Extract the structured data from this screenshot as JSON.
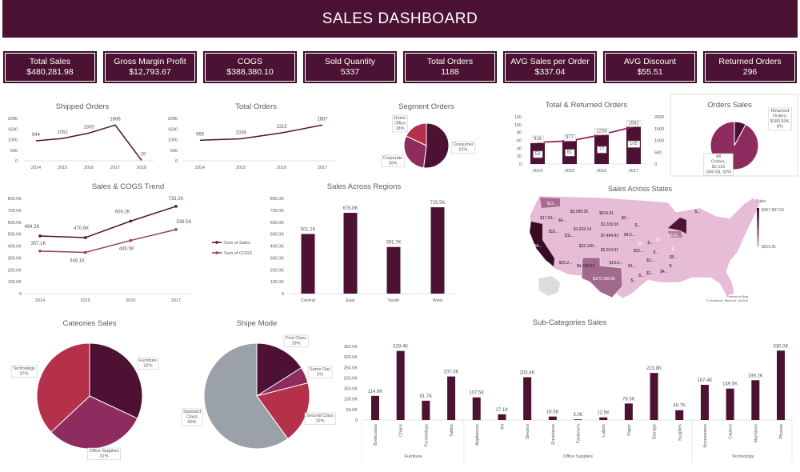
{
  "header": {
    "title": "SALES DASHBOARD"
  },
  "kpis": [
    {
      "label": "Total Sales",
      "value": "$480,281.98"
    },
    {
      "label": "Gross Margin Profit",
      "value": "$12,793.67"
    },
    {
      "label": "COGS",
      "value": "$388,380.10"
    },
    {
      "label": "Sold Quantity",
      "value": "5337"
    },
    {
      "label": "Total Orders",
      "value": "1188"
    },
    {
      "label": "AVG Sales per Order",
      "value": "$337.04"
    },
    {
      "label": "AVG Discount",
      "value": "$55.51"
    },
    {
      "label": "Returned  Orders",
      "value": "296"
    }
  ],
  "colors": {
    "brand": "#4b1233",
    "dark": "#4d1133",
    "purple": "#8e2c5f",
    "red": "#b5304a",
    "grey": "#9aa1a8"
  },
  "chart_data": {
    "shipped": {
      "type": "line",
      "title": "Shipped Orders",
      "categories": [
        "2014",
        "2015",
        "2016",
        "2017",
        "2018"
      ],
      "values": [
        944,
        1052,
        1305,
        1688,
        20
      ],
      "ylim": [
        0,
        2000
      ],
      "ystep": 500
    },
    "total_orders": {
      "type": "line",
      "title": "Total Orders",
      "categories": [
        "2014",
        "2015",
        "2016",
        "2017"
      ],
      "values": [
        969,
        1038,
        1315,
        1687
      ],
      "ylim": [
        0,
        2000
      ],
      "ystep": 500
    },
    "segment": {
      "type": "pie",
      "title": "Segment Orders",
      "slices": [
        {
          "label": "Consumer",
          "value": 52,
          "pct": "52%"
        },
        {
          "label": "Corporate",
          "value": 30,
          "pct": "30%"
        },
        {
          "label": "Home Office",
          "value": 18,
          "pct": "18%"
        }
      ]
    },
    "total_returned": {
      "type": "bar+line",
      "title": "Total & Returned Orders",
      "categories": [
        "2014",
        "2015",
        "2016",
        "2017"
      ],
      "bars": {
        "values": [
          53,
          61,
          77,
          105
        ],
        "ylim": [
          0,
          120
        ],
        "ystep": 20
      },
      "line": {
        "values": [
          916,
          977,
          1238,
          1582
        ],
        "ylim": [
          0,
          2000
        ],
        "ystep": 500
      }
    },
    "orders_sales": {
      "type": "pie",
      "title": "Orders Sales",
      "slices": [
        {
          "label": "Returned Orders",
          "value": 180504,
          "text": "Returned Orders, $180,504, 8%"
        },
        {
          "label": "All Orders",
          "value": 2116696.58,
          "text": "All Orders, $2,116,696.58, 92%"
        }
      ]
    },
    "sales_cogs": {
      "type": "line",
      "title": "Sales & COGS Trend",
      "categories": [
        "2014",
        "2015",
        "2016",
        "2017"
      ],
      "ylim": [
        0,
        800000
      ],
      "ystep": 100000,
      "legend": "right",
      "series": [
        {
          "name": "Sum of Sales",
          "values": [
            484200,
            470500,
            609200,
            733200
          ]
        },
        {
          "name": "Sum of COGS",
          "values": [
            357100,
            346100,
            446500,
            538500
          ]
        }
      ]
    },
    "regions": {
      "type": "bar",
      "title": "Sales Across Regions",
      "categories": [
        "Central",
        "East",
        "South",
        "West"
      ],
      "values": [
        501200,
        678800,
        391700,
        725500
      ],
      "ylim": [
        0,
        800000
      ],
      "ystep": 100000
    },
    "categories": {
      "type": "pie",
      "title": "Cateories Sales",
      "slices": [
        {
          "label": "Furniture",
          "value": 32,
          "pct": "32%"
        },
        {
          "label": "Office Supplies",
          "value": 31,
          "pct": "31%"
        },
        {
          "label": "Technology",
          "value": 37,
          "pct": "37%"
        }
      ]
    },
    "ship_mode": {
      "type": "pie",
      "title": "Shipe Mode",
      "slices": [
        {
          "label": "First Class",
          "value": 16,
          "pct": "16%"
        },
        {
          "label": "Same Day",
          "value": 5,
          "pct": "5%"
        },
        {
          "label": "Second Class",
          "value": 19,
          "pct": "19%"
        },
        {
          "label": "Standard Class",
          "value": 60,
          "pct": "60%"
        }
      ]
    },
    "subcategories": {
      "type": "bar",
      "title": "Sub-Categories Sales",
      "ylim": [
        0,
        350000
      ],
      "ystep": 50000,
      "groups": [
        {
          "name": "Furniture",
          "items": [
            [
              "Bookcases",
              114900
            ],
            [
              "Chairs",
              328400
            ],
            [
              "Furnishings",
              91700
            ],
            [
              "Tables",
              207000
            ]
          ]
        },
        {
          "name": "Office Supplies",
          "items": [
            [
              "Appliances",
              107500
            ],
            [
              "Art",
              27100
            ],
            [
              "Binders",
              203400
            ],
            [
              "Envelopes",
              16500
            ],
            [
              "Fasteners",
              3000
            ],
            [
              "Labels",
              12500
            ],
            [
              "Paper",
              78500
            ],
            [
              "Storage",
              223800
            ],
            [
              "Supplies",
              46700
            ]
          ]
        },
        {
          "name": "Technology",
          "items": [
            [
              "Accessories",
              167400
            ],
            [
              "Copiers",
              149500
            ],
            [
              "Machines",
              189200
            ],
            [
              "Phones",
              330000
            ]
          ]
        }
      ]
    },
    "states_map": {
      "type": "map",
      "title": "Sales Across States",
      "legend_title": "Sales",
      "max_label": "$457,687.63",
      "min_label": "$919.91",
      "labels": [
        "$13...",
        "$5,589.35",
        "$919.91",
        "$2...",
        "$...",
        "$17.63...",
        "$4...",
        "$1,315.56",
        "$...",
        "$1,603.14",
        "$7,464.93",
        "$4,5...",
        "$16...",
        "$11...",
        "$114...",
        "$8",
        "$...",
        "$7",
        "$4...",
        "$32,108...",
        "$2,914.31",
        "$22...",
        "$...",
        "$...",
        "$3...",
        "$5...",
        "$35.2...",
        "$4,783.52",
        "$19.6...",
        "$1...",
        "$",
        "$...",
        "$1...",
        "$4...",
        "$170,188.05",
        "$...",
        "$"
      ],
      "attribution": [
        "Powered by Bing",
        "© GeoNames, Microsoft, TomTom"
      ]
    }
  }
}
